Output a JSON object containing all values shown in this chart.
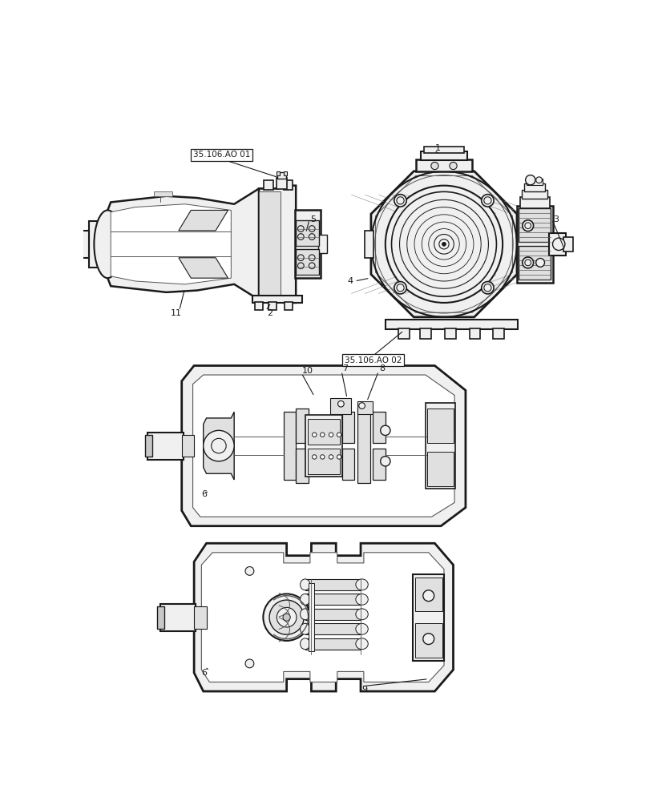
{
  "bg": "#ffffff",
  "lc": "#1a1a1a",
  "lc2": "#555555",
  "lc3": "#888888",
  "fill_outer": "#f0f0f0",
  "fill_mid": "#e0e0e0",
  "fill_dark": "#c8c8c8",
  "fill_white": "#ffffff",
  "lw1": 1.5,
  "lw2": 1.0,
  "lw3": 0.6,
  "lw4": 0.4,
  "labels": {
    "ref1": "35.106.AO 01",
    "ref2": "35.106.AO 02",
    "1": "1",
    "2": "2",
    "3": "3",
    "4": "4",
    "5": "5",
    "6": "6",
    "7": "7",
    "8": "8",
    "9": "9",
    "10": "10",
    "11": "11"
  },
  "figsize": [
    8.12,
    10.0
  ],
  "dpi": 100
}
